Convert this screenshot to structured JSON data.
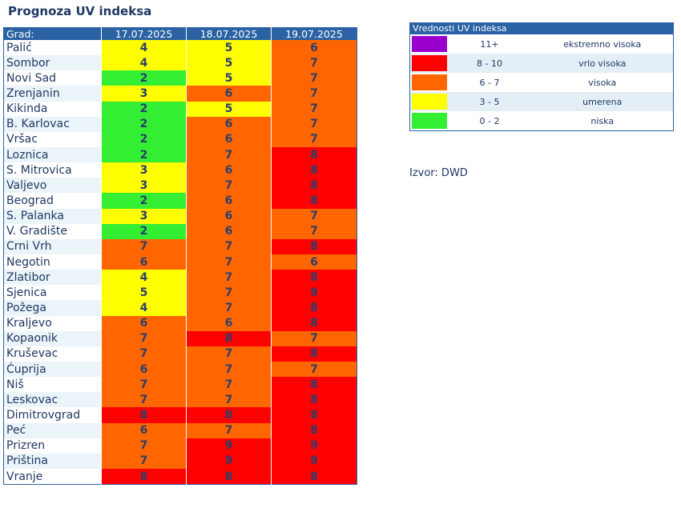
{
  "title": "Prognoza UV indeksa",
  "table": {
    "headers": [
      "Grad:",
      "17.07.2025",
      "18.07.2025",
      "19.07.2025"
    ],
    "rows": [
      {
        "city": "Palić",
        "values": [
          4,
          5,
          6
        ]
      },
      {
        "city": "Sombor",
        "values": [
          4,
          5,
          7
        ]
      },
      {
        "city": "Novi Sad",
        "values": [
          2,
          5,
          7
        ]
      },
      {
        "city": "Zrenjanin",
        "values": [
          3,
          6,
          7
        ]
      },
      {
        "city": "Kikinda",
        "values": [
          2,
          5,
          7
        ]
      },
      {
        "city": "B. Karlovac",
        "values": [
          2,
          6,
          7
        ]
      },
      {
        "city": "Vršac",
        "values": [
          2,
          6,
          7
        ]
      },
      {
        "city": "Loznica",
        "values": [
          2,
          7,
          8
        ]
      },
      {
        "city": "S. Mitrovica",
        "values": [
          3,
          6,
          8
        ]
      },
      {
        "city": "Valjevo",
        "values": [
          3,
          7,
          8
        ]
      },
      {
        "city": "Beograd",
        "values": [
          2,
          6,
          8
        ]
      },
      {
        "city": "S. Palanka",
        "values": [
          3,
          6,
          7
        ]
      },
      {
        "city": "V. Gradište",
        "values": [
          2,
          6,
          7
        ]
      },
      {
        "city": "Crni Vrh",
        "values": [
          7,
          7,
          8
        ]
      },
      {
        "city": "Negotin",
        "values": [
          6,
          7,
          6
        ]
      },
      {
        "city": "Zlatibor",
        "values": [
          4,
          7,
          8
        ]
      },
      {
        "city": "Sjenica",
        "values": [
          5,
          7,
          9
        ]
      },
      {
        "city": "Požega",
        "values": [
          4,
          7,
          8
        ]
      },
      {
        "city": "Kraljevo",
        "values": [
          6,
          6,
          8
        ]
      },
      {
        "city": "Kopaonik",
        "values": [
          7,
          8,
          7
        ]
      },
      {
        "city": "Kruševac",
        "values": [
          7,
          7,
          8
        ]
      },
      {
        "city": "Ćuprija",
        "values": [
          6,
          7,
          7
        ]
      },
      {
        "city": "Niš",
        "values": [
          7,
          7,
          8
        ]
      },
      {
        "city": "Leskovac",
        "values": [
          7,
          7,
          8
        ]
      },
      {
        "city": "Dimitrovgrad",
        "values": [
          8,
          8,
          8
        ]
      },
      {
        "city": "Peć",
        "values": [
          6,
          7,
          8
        ]
      },
      {
        "city": "Prizren",
        "values": [
          7,
          9,
          9
        ]
      },
      {
        "city": "Priština",
        "values": [
          7,
          9,
          9
        ]
      },
      {
        "city": "Vranje",
        "values": [
          8,
          8,
          8
        ]
      }
    ]
  },
  "legend": {
    "title": "Vrednosti UV indeksa",
    "items": [
      {
        "color": "#9900cc",
        "range": "11+",
        "label": "ekstremno visoka"
      },
      {
        "color": "#ff0000",
        "range": "8 - 10",
        "label": "vrlo visoka"
      },
      {
        "color": "#ff6600",
        "range": "6 - 7",
        "label": "visoka"
      },
      {
        "color": "#ffff00",
        "range": "3 - 5",
        "label": "umerena"
      },
      {
        "color": "#33ee33",
        "range": "0 - 2",
        "label": "niska"
      }
    ]
  },
  "source": "Izvor: DWD",
  "colors": {
    "niska": "#33ee33",
    "umerena": "#ffff00",
    "visoka": "#ff6600",
    "vrlo_visoka": "#ff0000",
    "ekstremno_visoka": "#9900cc",
    "header_bg": "#2a62a3",
    "text": "#1f3864"
  }
}
